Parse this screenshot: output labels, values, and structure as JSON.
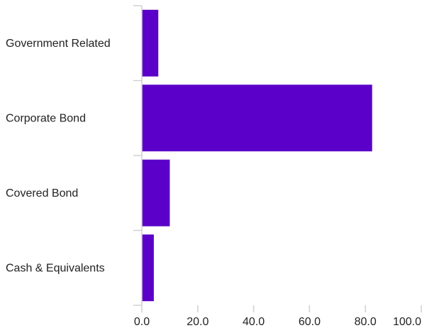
{
  "chart_data": {
    "type": "bar",
    "orientation": "horizontal",
    "categories": [
      "Government Related",
      "Corporate Bond",
      "Covered Bond",
      "Cash & Equivalents"
    ],
    "values": [
      5.9,
      82.4,
      10.0,
      4.3
    ],
    "xlim": [
      0,
      100
    ],
    "xticks": [
      "0.0",
      "20.0",
      "40.0",
      "60.0",
      "80.0",
      "100.0"
    ],
    "xtick_values": [
      0,
      20,
      40,
      60,
      80,
      100
    ],
    "grid": false,
    "legend": "none",
    "bar_color": "#5b00c8",
    "axis_color": "#d0d0d0"
  }
}
